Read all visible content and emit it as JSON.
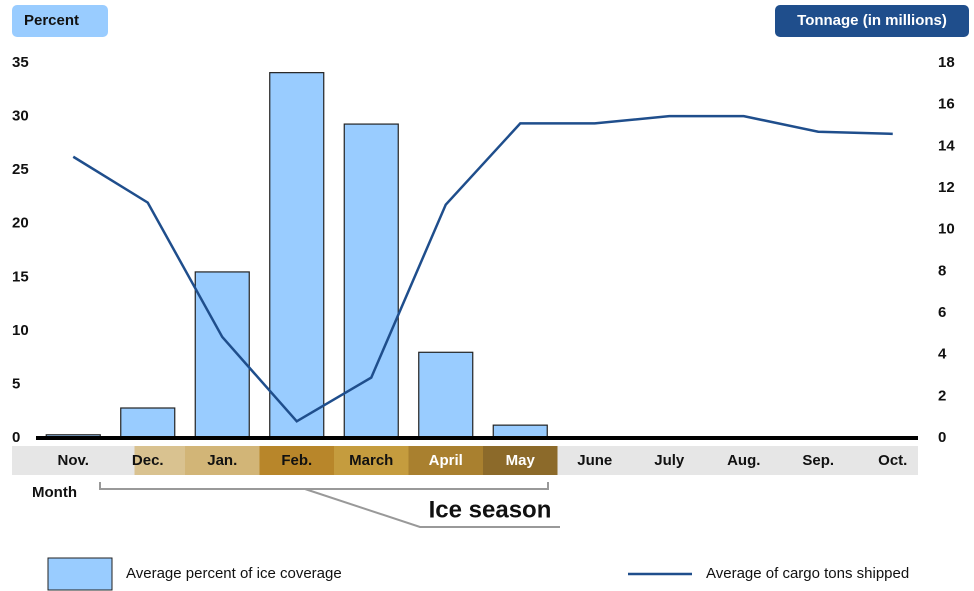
{
  "chart_data": {
    "type": "bar_line",
    "y_label": "Percent",
    "y2_label": "Tonnage (in millions)",
    "x_label": "Month",
    "annotation": "Ice season",
    "categories": [
      "Nov.",
      "Dec.",
      "Jan.",
      "Feb.",
      "March",
      "April",
      "May",
      "June",
      "July",
      "Aug.",
      "Sep.",
      "Oct."
    ],
    "series": [
      {
        "name": "Average percent of ice coverage",
        "type": "bar",
        "color": "#99ccff",
        "values": [
          0.3,
          2.8,
          15.5,
          34.1,
          29.3,
          8.0,
          1.2,
          null,
          null,
          null,
          null,
          null
        ]
      },
      {
        "name": "Average of cargo tons shipped",
        "type": "line",
        "axis": "y2",
        "color": "#1f4e8c",
        "values": [
          13.5,
          11.3,
          4.85,
          0.8,
          2.9,
          11.2,
          15.1,
          15.1,
          15.45,
          15.45,
          14.7,
          14.6
        ]
      }
    ],
    "ylim": [
      0,
      35
    ],
    "yticks": [
      0,
      5,
      10,
      15,
      20,
      25,
      30,
      35
    ],
    "y2lim": [
      0,
      18
    ],
    "y2ticks": [
      0,
      2,
      4,
      6,
      8,
      10,
      12,
      14,
      16,
      18
    ]
  }
}
